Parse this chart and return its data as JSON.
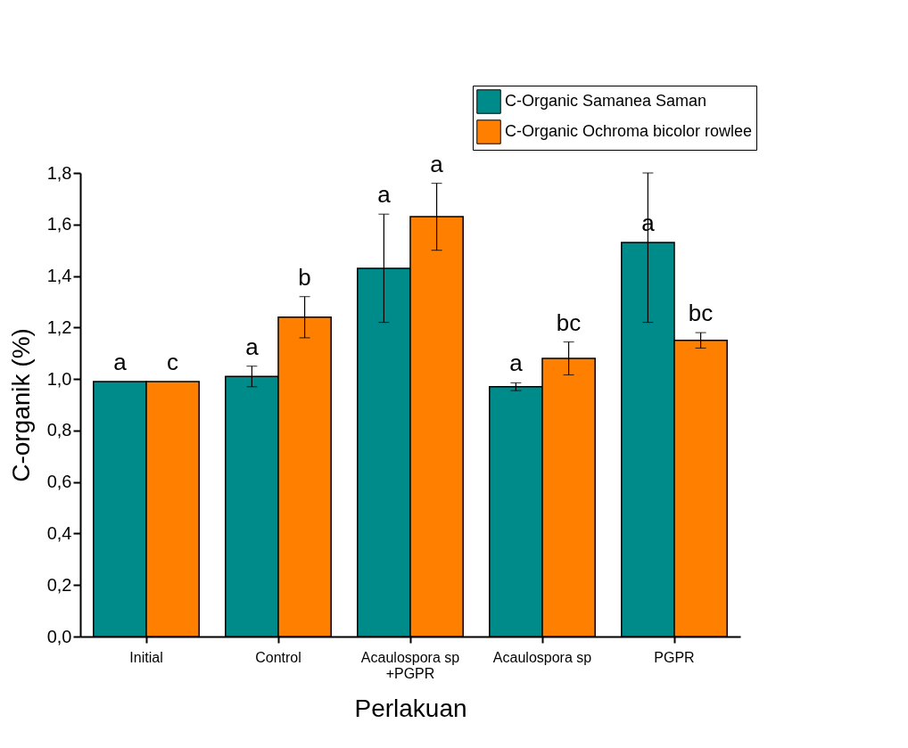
{
  "chart_data": {
    "type": "bar",
    "xlabel": "Perlakuan",
    "ylabel": "C-organik (%)",
    "categories": [
      "Initial",
      "Control",
      "Acaulospora sp\n+PGPR",
      "Acaulospora sp",
      "PGPR"
    ],
    "series": [
      {
        "name": "C-Organic Samanea Saman",
        "color": "#008b8b",
        "values": [
          0.99,
          1.01,
          1.43,
          0.97,
          1.53
        ],
        "errors": [
          null,
          0.04,
          0.21,
          0.015,
          [
            1.22,
            1.8
          ]
        ],
        "value_labels": [
          "a",
          "a",
          "a",
          "a",
          "a"
        ]
      },
      {
        "name": "C-Organic Ochroma bicolor rowlee",
        "color": "#ff8000",
        "values": [
          0.99,
          1.24,
          1.63,
          1.08,
          1.15
        ],
        "errors": [
          null,
          0.08,
          0.13,
          0.064,
          0.03
        ],
        "value_labels": [
          "c",
          "b",
          "a",
          "bc",
          "bc"
        ]
      }
    ],
    "ylim": [
      0,
      1.8
    ],
    "yticks": [
      {
        "value": 0,
        "label": "0,0"
      },
      {
        "value": 0.2,
        "label": "0,2"
      },
      {
        "value": 0.4,
        "label": "0,4"
      },
      {
        "value": 0.6,
        "label": "0,6"
      },
      {
        "value": 0.8,
        "label": "0,8"
      },
      {
        "value": 1.0,
        "label": "1,0"
      },
      {
        "value": 1.2,
        "label": "1,2"
      },
      {
        "value": 1.4,
        "label": "1,4"
      },
      {
        "value": 1.6,
        "label": "1,6"
      },
      {
        "value": 1.8,
        "label": "1,8"
      }
    ],
    "grid": false,
    "legend": "top right"
  }
}
